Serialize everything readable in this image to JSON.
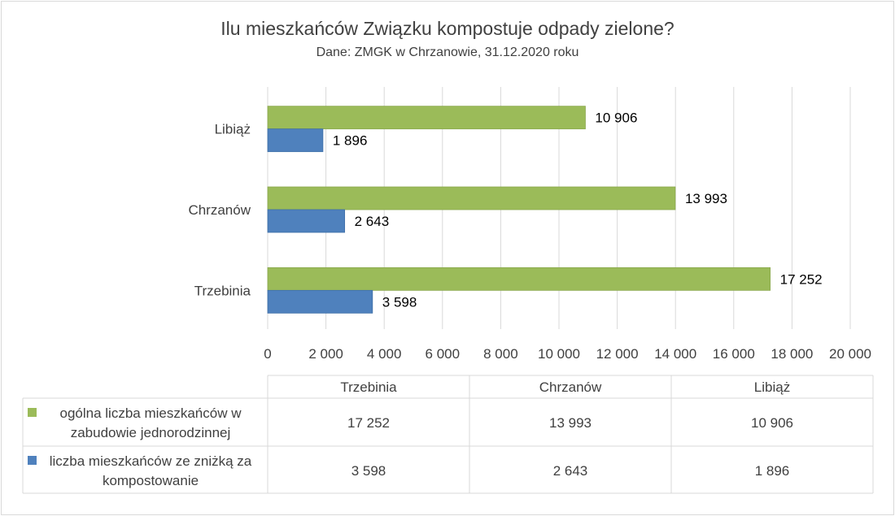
{
  "chart_data": {
    "type": "bar",
    "orientation": "horizontal",
    "title": "Ilu mieszkańców Związku kompostuje odpady zielone?",
    "subtitle": "Dane: ZMGK w Chrzanowie, 31.12.2020 roku",
    "categories": [
      "Trzebinia",
      "Chrzanów",
      "Libiąż"
    ],
    "series": [
      {
        "name": "ogólna liczba mieszkańców w zabudowie jednorodzinnej",
        "color": "#9BBB59",
        "values": [
          17252,
          13993,
          10906
        ],
        "labels": [
          "17 252",
          "13 993",
          "10 906"
        ]
      },
      {
        "name": "liczba mieszkańców ze zniżką za kompostowanie",
        "color": "#4F81BD",
        "values": [
          3598,
          2643,
          1896
        ],
        "labels": [
          "3 598",
          "2 643",
          "1 896"
        ]
      }
    ],
    "xlim": [
      0,
      20000
    ],
    "xticks": [
      0,
      2000,
      4000,
      6000,
      8000,
      10000,
      12000,
      14000,
      16000,
      18000,
      20000
    ],
    "xtick_labels": [
      "0",
      "2 000",
      "4 000",
      "6 000",
      "8 000",
      "10 000",
      "12 000",
      "14 000",
      "16 000",
      "18 000",
      "20 000"
    ],
    "grid": true,
    "legend": "data-table"
  }
}
